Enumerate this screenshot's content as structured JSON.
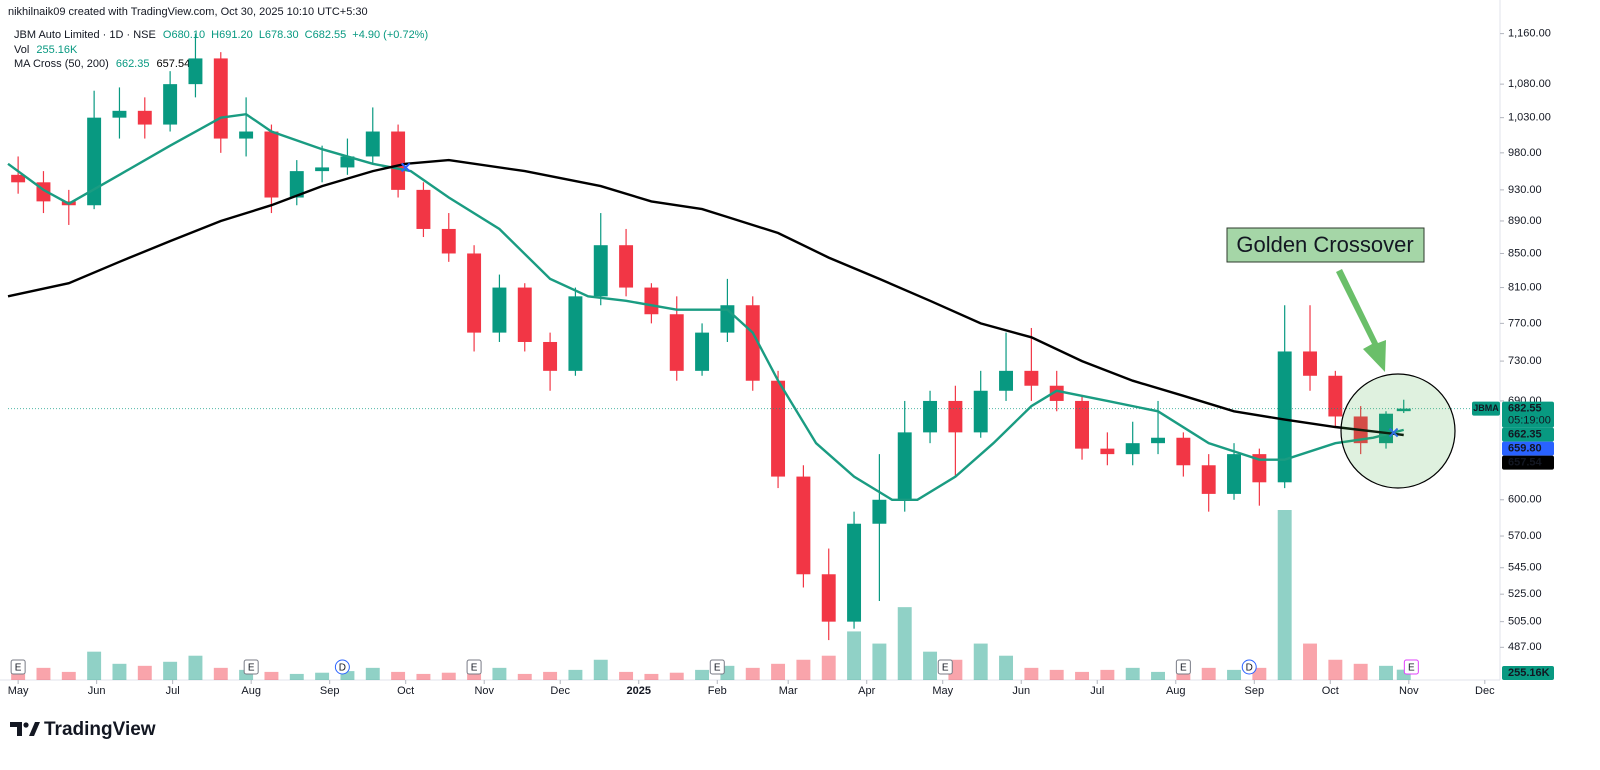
{
  "chart_data": {
    "type": "candlestick",
    "watermark": "nikhilnaik09 created with TradingView.com, Oct 30, 2025 10:10 UTC+5:30",
    "symbol": "JBM Auto Limited · 1D · NSE",
    "ohlc": [
      "O680.10",
      "H691.20",
      "L678.30",
      "C682.55",
      "+4.90 (+0.72%)"
    ],
    "volume_title": "Vol",
    "volume_text": "255.16K",
    "ma_title": "MA Cross (50, 200)",
    "ma_values": [
      "662.35",
      "657.54"
    ],
    "brand": "TradingView",
    "log_scale": true,
    "grid": false,
    "xlim": [
      -4,
      585
    ],
    "ylim": [
      465,
      1196
    ],
    "xticks": [
      {
        "value": 0,
        "label": "May"
      },
      {
        "value": 31,
        "label": "Jun"
      },
      {
        "value": 61,
        "label": "Jul"
      },
      {
        "value": 92,
        "label": "Aug"
      },
      {
        "value": 123,
        "label": "Sep"
      },
      {
        "value": 153,
        "label": "Oct"
      },
      {
        "value": 184,
        "label": "Nov"
      },
      {
        "value": 214,
        "label": "Dec"
      },
      {
        "value": 245,
        "label": "2025"
      },
      {
        "value": 276,
        "label": "Feb"
      },
      {
        "value": 304,
        "label": "Mar"
      },
      {
        "value": 335,
        "label": "Apr"
      },
      {
        "value": 365,
        "label": "May"
      },
      {
        "value": 396,
        "label": "Jun"
      },
      {
        "value": 426,
        "label": "Jul"
      },
      {
        "value": 457,
        "label": "Aug"
      },
      {
        "value": 488,
        "label": "Sep"
      },
      {
        "value": 518,
        "label": "Oct"
      },
      {
        "value": 549,
        "label": "Nov"
      },
      {
        "value": 579,
        "label": "Dec"
      }
    ],
    "yticks": [
      {
        "value": 1160,
        "label": "1,160.00"
      },
      {
        "value": 1080,
        "label": "1,080.00"
      },
      {
        "value": 1030,
        "label": "1,030.00"
      },
      {
        "value": 980,
        "label": "980.00"
      },
      {
        "value": 930,
        "label": "930.00"
      },
      {
        "value": 890,
        "label": "890.00"
      },
      {
        "value": 850,
        "label": "850.00"
      },
      {
        "value": 810,
        "label": "810.00"
      },
      {
        "value": 770,
        "label": "770.00"
      },
      {
        "value": 730,
        "label": "730.00"
      },
      {
        "value": 690,
        "label": "690.00"
      },
      {
        "value": 600,
        "label": "600.00"
      },
      {
        "value": 570,
        "label": "570.00"
      },
      {
        "value": 545,
        "label": "545.00"
      },
      {
        "value": 525,
        "label": "525.00"
      },
      {
        "value": 505,
        "label": "505.00"
      },
      {
        "value": 487,
        "label": "487.00"
      }
    ],
    "candles": {
      "up_color": "#089981",
      "down_color": "#f23645",
      "x": [
        0,
        10,
        20,
        30,
        40,
        50,
        60,
        70,
        80,
        90,
        100,
        110,
        120,
        130,
        140,
        150,
        160,
        170,
        180,
        190,
        200,
        210,
        220,
        230,
        240,
        250,
        260,
        270,
        280,
        290,
        300,
        310,
        320,
        330,
        340,
        350,
        360,
        370,
        380,
        390,
        400,
        410,
        420,
        430,
        440,
        450,
        460,
        470,
        480,
        490,
        500,
        510,
        520,
        530,
        540,
        547
      ],
      "open": [
        950,
        940,
        915,
        910,
        1030,
        1040,
        1020,
        1080,
        1120,
        1000,
        1010,
        920,
        955,
        960,
        975,
        1010,
        930,
        880,
        850,
        760,
        810,
        750,
        720,
        800,
        860,
        810,
        780,
        720,
        760,
        790,
        710,
        620,
        540,
        505,
        580,
        600,
        660,
        690,
        660,
        700,
        720,
        705,
        690,
        645,
        640,
        650,
        655,
        630,
        605,
        640,
        615,
        740,
        715,
        675,
        650,
        680.1
      ],
      "high": [
        975,
        955,
        930,
        1070,
        1075,
        1060,
        1100,
        1160,
        1130,
        1060,
        1020,
        970,
        990,
        1000,
        1045,
        1020,
        940,
        900,
        860,
        825,
        815,
        760,
        810,
        900,
        880,
        815,
        800,
        770,
        820,
        800,
        720,
        630,
        560,
        590,
        640,
        690,
        700,
        705,
        720,
        760,
        765,
        720,
        695,
        660,
        670,
        690,
        660,
        640,
        650,
        645,
        790,
        790,
        720,
        685,
        680,
        691.2
      ],
      "low": [
        925,
        900,
        885,
        905,
        1000,
        1000,
        1010,
        1060,
        980,
        975,
        900,
        910,
        940,
        950,
        965,
        920,
        870,
        840,
        740,
        750,
        740,
        700,
        715,
        790,
        800,
        770,
        710,
        715,
        750,
        700,
        610,
        530,
        492,
        500,
        520,
        590,
        650,
        620,
        655,
        690,
        690,
        680,
        635,
        630,
        630,
        640,
        620,
        590,
        600,
        595,
        610,
        700,
        665,
        640,
        645,
        678.3
      ],
      "close": [
        940,
        915,
        910,
        1030,
        1040,
        1020,
        1080,
        1120,
        1000,
        1010,
        920,
        955,
        960,
        975,
        1010,
        930,
        880,
        850,
        760,
        810,
        750,
        720,
        800,
        860,
        810,
        780,
        720,
        760,
        790,
        710,
        620,
        540,
        505,
        580,
        600,
        660,
        690,
        660,
        700,
        720,
        705,
        690,
        645,
        640,
        650,
        655,
        630,
        605,
        640,
        615,
        740,
        715,
        675,
        650,
        677.65,
        682.55
      ],
      "volume": [
        250,
        300,
        200,
        700,
        400,
        350,
        450,
        600,
        300,
        250,
        200,
        150,
        180,
        220,
        300,
        200,
        150,
        180,
        220,
        300,
        150,
        200,
        250,
        500,
        200,
        150,
        180,
        250,
        350,
        300,
        400,
        500,
        600,
        1200,
        900,
        1800,
        700,
        500,
        900,
        600,
        300,
        250,
        200,
        250,
        300,
        200,
        350,
        300,
        250,
        300,
        4200,
        900,
        500,
        400,
        350,
        255.16
      ]
    },
    "series": [
      {
        "color": "#1a9c82",
        "x": [
          -4,
          10,
          20,
          40,
          60,
          80,
          90,
          100,
          120,
          140,
          155,
          170,
          190,
          210,
          225,
          240,
          260,
          280,
          290,
          300,
          315,
          330,
          345,
          355,
          370,
          385,
          400,
          410,
          430,
          450,
          470,
          490,
          500,
          520,
          535,
          547
        ],
        "values": [
          965,
          930,
          912,
          950,
          990,
          1030,
          1035,
          1010,
          985,
          965,
          955,
          920,
          880,
          820,
          800,
          795,
          785,
          785,
          760,
          710,
          650,
          620,
          600,
          600,
          620,
          650,
          685,
          700,
          690,
          680,
          650,
          635,
          635,
          650,
          655,
          662.35
        ]
      },
      {
        "color": "#000000",
        "x": [
          -4,
          20,
          40,
          60,
          80,
          100,
          120,
          140,
          153,
          170,
          200,
          230,
          250,
          270,
          280,
          300,
          320,
          340,
          360,
          380,
          400,
          420,
          440,
          460,
          480,
          500,
          520,
          547
        ],
        "values": [
          800,
          815,
          840,
          865,
          890,
          910,
          935,
          955,
          965,
          970,
          955,
          935,
          915,
          905,
          895,
          875,
          845,
          820,
          795,
          770,
          755,
          730,
          710,
          695,
          680,
          672,
          665,
          657.54
        ]
      }
    ],
    "crosses": {
      "color": "#2962ff",
      "x": [
        153,
        543
      ],
      "values": [
        960,
        659.8
      ]
    },
    "price_labels": [
      {
        "value": 682.55,
        "label": "682.55",
        "tag": "JBMA",
        "sub": "05:19:00",
        "color": "#089981"
      },
      {
        "value": 662.35,
        "label": "662.35",
        "color": "#089981"
      },
      {
        "value": 659.8,
        "label": "659.80",
        "color": "#2962ff"
      },
      {
        "value": 657.54,
        "label": "657.54",
        "color": "#000000"
      }
    ],
    "events": [
      {
        "x": 0,
        "label": "E",
        "color": "#787b86"
      },
      {
        "x": 92,
        "label": "E",
        "color": "#787b86"
      },
      {
        "x": 128,
        "label": "D",
        "color": "#2962ff"
      },
      {
        "x": 180,
        "label": "E",
        "color": "#787b86"
      },
      {
        "x": 276,
        "label": "E",
        "color": "#787b86"
      },
      {
        "x": 366,
        "label": "E",
        "color": "#787b86"
      },
      {
        "x": 460,
        "label": "E",
        "color": "#787b86"
      },
      {
        "x": 486,
        "label": "D",
        "color": "#2962ff"
      },
      {
        "x": 550,
        "label": "E",
        "color": "#e040fb"
      }
    ],
    "annotation": {
      "text": "Golden Crossover"
    }
  }
}
